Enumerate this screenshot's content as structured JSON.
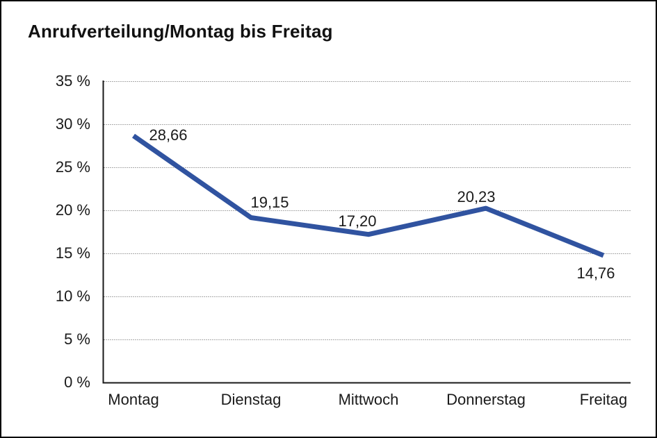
{
  "chart_data": {
    "type": "line",
    "title": "Anrufverteilung/Montag bis Freitag",
    "categories": [
      "Montag",
      "Dienstag",
      "Mittwoch",
      "Donnerstag",
      "Freitag"
    ],
    "values": [
      28.66,
      19.15,
      17.2,
      20.23,
      14.76
    ],
    "data_labels": [
      "28,66",
      "19,15",
      "17,20",
      "20,23",
      "14,76"
    ],
    "y_axis": {
      "min": 0,
      "max": 35,
      "step": 5,
      "tick_labels": [
        "0 %",
        "5 %",
        "10 %",
        "15 %",
        "20 %",
        "25 %",
        "30 %",
        "35 %"
      ]
    },
    "x_axis": {
      "label": ""
    },
    "legend": "none",
    "grid": "horizontal-dotted",
    "colors": {
      "line": "#3053A0",
      "grid": "#555555",
      "axis": "#1a1a1a",
      "text": "#1a1a1a",
      "background": "#ffffff",
      "border": "#000000"
    }
  }
}
